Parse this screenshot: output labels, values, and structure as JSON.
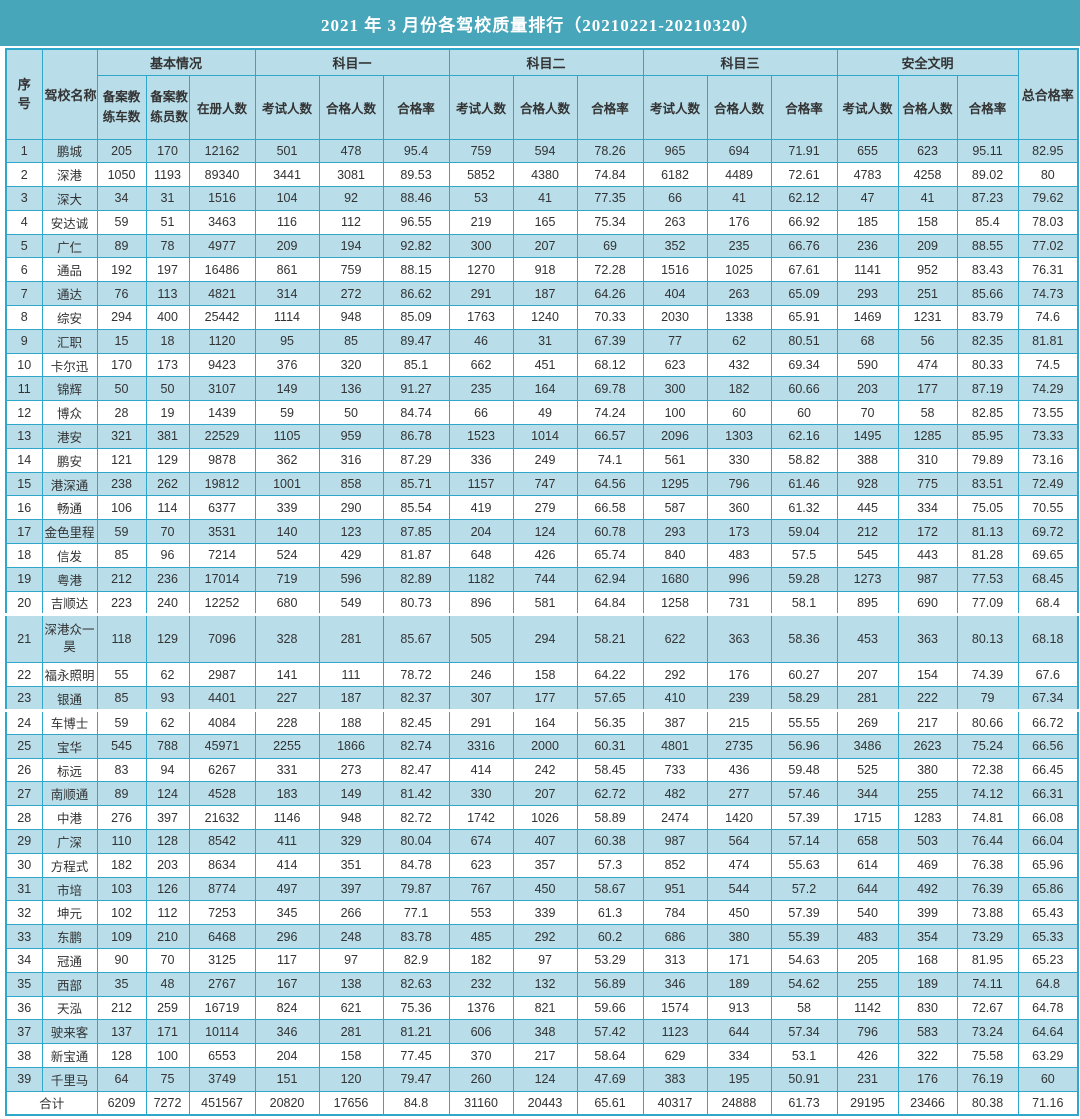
{
  "title": "2021 年 3 月份各驾校质量排行（20210221-20210320）",
  "colors": {
    "teal": "#48a6ba",
    "row-alt": "#b9dde9",
    "grid": "#2fa7cb",
    "text": "#333333",
    "title-text": "#ffffff"
  },
  "table": {
    "columns": {
      "seq": "序号",
      "school": "驾校名称",
      "groups": [
        {
          "label": "基本情况",
          "children": [
            "备案教练车数",
            "备案教练员数",
            "在册人数"
          ]
        },
        {
          "label": "科目一",
          "children": [
            "考试人数",
            "合格人数",
            "合格率"
          ]
        },
        {
          "label": "科目二",
          "children": [
            "考试人数",
            "合格人数",
            "合格率"
          ]
        },
        {
          "label": "科目三",
          "children": [
            "考试人数",
            "合格人数",
            "合格率"
          ]
        },
        {
          "label": "安全文明",
          "children": [
            "考试人数",
            "合格人数",
            "合格率"
          ]
        }
      ],
      "total": "总合格率"
    },
    "rows": [
      [
        "1",
        "鹏城",
        "205",
        "170",
        "12162",
        "501",
        "478",
        "95.4",
        "759",
        "594",
        "78.26",
        "965",
        "694",
        "71.91",
        "655",
        "623",
        "95.11",
        "82.95"
      ],
      [
        "2",
        "深港",
        "1050",
        "1193",
        "89340",
        "3441",
        "3081",
        "89.53",
        "5852",
        "4380",
        "74.84",
        "6182",
        "4489",
        "72.61",
        "4783",
        "4258",
        "89.02",
        "80"
      ],
      [
        "3",
        "深大",
        "34",
        "31",
        "1516",
        "104",
        "92",
        "88.46",
        "53",
        "41",
        "77.35",
        "66",
        "41",
        "62.12",
        "47",
        "41",
        "87.23",
        "79.62"
      ],
      [
        "4",
        "安达诚",
        "59",
        "51",
        "3463",
        "116",
        "112",
        "96.55",
        "219",
        "165",
        "75.34",
        "263",
        "176",
        "66.92",
        "185",
        "158",
        "85.4",
        "78.03"
      ],
      [
        "5",
        "广仁",
        "89",
        "78",
        "4977",
        "209",
        "194",
        "92.82",
        "300",
        "207",
        "69",
        "352",
        "235",
        "66.76",
        "236",
        "209",
        "88.55",
        "77.02"
      ],
      [
        "6",
        "通品",
        "192",
        "197",
        "16486",
        "861",
        "759",
        "88.15",
        "1270",
        "918",
        "72.28",
        "1516",
        "1025",
        "67.61",
        "1141",
        "952",
        "83.43",
        "76.31"
      ],
      [
        "7",
        "通达",
        "76",
        "113",
        "4821",
        "314",
        "272",
        "86.62",
        "291",
        "187",
        "64.26",
        "404",
        "263",
        "65.09",
        "293",
        "251",
        "85.66",
        "74.73"
      ],
      [
        "8",
        "综安",
        "294",
        "400",
        "25442",
        "1114",
        "948",
        "85.09",
        "1763",
        "1240",
        "70.33",
        "2030",
        "1338",
        "65.91",
        "1469",
        "1231",
        "83.79",
        "74.6"
      ],
      [
        "9",
        "汇职",
        "15",
        "18",
        "1120",
        "95",
        "85",
        "89.47",
        "46",
        "31",
        "67.39",
        "77",
        "62",
        "80.51",
        "68",
        "56",
        "82.35",
        "81.81"
      ],
      [
        "10",
        "卡尔迅",
        "170",
        "173",
        "9423",
        "376",
        "320",
        "85.1",
        "662",
        "451",
        "68.12",
        "623",
        "432",
        "69.34",
        "590",
        "474",
        "80.33",
        "74.5"
      ],
      [
        "11",
        "锦辉",
        "50",
        "50",
        "3107",
        "149",
        "136",
        "91.27",
        "235",
        "164",
        "69.78",
        "300",
        "182",
        "60.66",
        "203",
        "177",
        "87.19",
        "74.29"
      ],
      [
        "12",
        "博众",
        "28",
        "19",
        "1439",
        "59",
        "50",
        "84.74",
        "66",
        "49",
        "74.24",
        "100",
        "60",
        "60",
        "70",
        "58",
        "82.85",
        "73.55"
      ],
      [
        "13",
        "港安",
        "321",
        "381",
        "22529",
        "1105",
        "959",
        "86.78",
        "1523",
        "1014",
        "66.57",
        "2096",
        "1303",
        "62.16",
        "1495",
        "1285",
        "85.95",
        "73.33"
      ],
      [
        "14",
        "鹏安",
        "121",
        "129",
        "9878",
        "362",
        "316",
        "87.29",
        "336",
        "249",
        "74.1",
        "561",
        "330",
        "58.82",
        "388",
        "310",
        "79.89",
        "73.16"
      ],
      [
        "15",
        "港深通",
        "238",
        "262",
        "19812",
        "1001",
        "858",
        "85.71",
        "1157",
        "747",
        "64.56",
        "1295",
        "796",
        "61.46",
        "928",
        "775",
        "83.51",
        "72.49"
      ],
      [
        "16",
        "畅通",
        "106",
        "114",
        "6377",
        "339",
        "290",
        "85.54",
        "419",
        "279",
        "66.58",
        "587",
        "360",
        "61.32",
        "445",
        "334",
        "75.05",
        "70.55"
      ],
      [
        "17",
        "金色里程",
        "59",
        "70",
        "3531",
        "140",
        "123",
        "87.85",
        "204",
        "124",
        "60.78",
        "293",
        "173",
        "59.04",
        "212",
        "172",
        "81.13",
        "69.72"
      ],
      [
        "18",
        "信发",
        "85",
        "96",
        "7214",
        "524",
        "429",
        "81.87",
        "648",
        "426",
        "65.74",
        "840",
        "483",
        "57.5",
        "545",
        "443",
        "81.28",
        "69.65"
      ],
      [
        "19",
        "粤港",
        "212",
        "236",
        "17014",
        "719",
        "596",
        "82.89",
        "1182",
        "744",
        "62.94",
        "1680",
        "996",
        "59.28",
        "1273",
        "987",
        "77.53",
        "68.45"
      ],
      [
        "20",
        "吉顺达",
        "223",
        "240",
        "12252",
        "680",
        "549",
        "80.73",
        "896",
        "581",
        "64.84",
        "1258",
        "731",
        "58.1",
        "895",
        "690",
        "77.09",
        "68.4"
      ],
      [
        "21",
        "深港众一昊",
        "118",
        "129",
        "7096",
        "328",
        "281",
        "85.67",
        "505",
        "294",
        "58.21",
        "622",
        "363",
        "58.36",
        "453",
        "363",
        "80.13",
        "68.18"
      ],
      [
        "22",
        "福永照明",
        "55",
        "62",
        "2987",
        "141",
        "111",
        "78.72",
        "246",
        "158",
        "64.22",
        "292",
        "176",
        "60.27",
        "207",
        "154",
        "74.39",
        "67.6"
      ],
      [
        "23",
        "银通",
        "85",
        "93",
        "4401",
        "227",
        "187",
        "82.37",
        "307",
        "177",
        "57.65",
        "410",
        "239",
        "58.29",
        "281",
        "222",
        "79",
        "67.34"
      ],
      [
        "24",
        "车博士",
        "59",
        "62",
        "4084",
        "228",
        "188",
        "82.45",
        "291",
        "164",
        "56.35",
        "387",
        "215",
        "55.55",
        "269",
        "217",
        "80.66",
        "66.72"
      ],
      [
        "25",
        "宝华",
        "545",
        "788",
        "45971",
        "2255",
        "1866",
        "82.74",
        "3316",
        "2000",
        "60.31",
        "4801",
        "2735",
        "56.96",
        "3486",
        "2623",
        "75.24",
        "66.56"
      ],
      [
        "26",
        "标远",
        "83",
        "94",
        "6267",
        "331",
        "273",
        "82.47",
        "414",
        "242",
        "58.45",
        "733",
        "436",
        "59.48",
        "525",
        "380",
        "72.38",
        "66.45"
      ],
      [
        "27",
        "南顺通",
        "89",
        "124",
        "4528",
        "183",
        "149",
        "81.42",
        "330",
        "207",
        "62.72",
        "482",
        "277",
        "57.46",
        "344",
        "255",
        "74.12",
        "66.31"
      ],
      [
        "28",
        "中港",
        "276",
        "397",
        "21632",
        "1146",
        "948",
        "82.72",
        "1742",
        "1026",
        "58.89",
        "2474",
        "1420",
        "57.39",
        "1715",
        "1283",
        "74.81",
        "66.08"
      ],
      [
        "29",
        "广深",
        "110",
        "128",
        "8542",
        "411",
        "329",
        "80.04",
        "674",
        "407",
        "60.38",
        "987",
        "564",
        "57.14",
        "658",
        "503",
        "76.44",
        "66.04"
      ],
      [
        "30",
        "方程式",
        "182",
        "203",
        "8634",
        "414",
        "351",
        "84.78",
        "623",
        "357",
        "57.3",
        "852",
        "474",
        "55.63",
        "614",
        "469",
        "76.38",
        "65.96"
      ],
      [
        "31",
        "市培",
        "103",
        "126",
        "8774",
        "497",
        "397",
        "79.87",
        "767",
        "450",
        "58.67",
        "951",
        "544",
        "57.2",
        "644",
        "492",
        "76.39",
        "65.86"
      ],
      [
        "32",
        "坤元",
        "102",
        "112",
        "7253",
        "345",
        "266",
        "77.1",
        "553",
        "339",
        "61.3",
        "784",
        "450",
        "57.39",
        "540",
        "399",
        "73.88",
        "65.43"
      ],
      [
        "33",
        "东鹏",
        "109",
        "210",
        "6468",
        "296",
        "248",
        "83.78",
        "485",
        "292",
        "60.2",
        "686",
        "380",
        "55.39",
        "483",
        "354",
        "73.29",
        "65.33"
      ],
      [
        "34",
        "冠通",
        "90",
        "70",
        "3125",
        "117",
        "97",
        "82.9",
        "182",
        "97",
        "53.29",
        "313",
        "171",
        "54.63",
        "205",
        "168",
        "81.95",
        "65.23"
      ],
      [
        "35",
        "西部",
        "35",
        "48",
        "2767",
        "167",
        "138",
        "82.63",
        "232",
        "132",
        "56.89",
        "346",
        "189",
        "54.62",
        "255",
        "189",
        "74.11",
        "64.8"
      ],
      [
        "36",
        "天泓",
        "212",
        "259",
        "16719",
        "824",
        "621",
        "75.36",
        "1376",
        "821",
        "59.66",
        "1574",
        "913",
        "58",
        "1142",
        "830",
        "72.67",
        "64.78"
      ],
      [
        "37",
        "驶来客",
        "137",
        "171",
        "10114",
        "346",
        "281",
        "81.21",
        "606",
        "348",
        "57.42",
        "1123",
        "644",
        "57.34",
        "796",
        "583",
        "73.24",
        "64.64"
      ],
      [
        "38",
        "新宝通",
        "128",
        "100",
        "6553",
        "204",
        "158",
        "77.45",
        "370",
        "217",
        "58.64",
        "629",
        "334",
        "53.1",
        "426",
        "322",
        "75.58",
        "63.29"
      ],
      [
        "39",
        "千里马",
        "64",
        "75",
        "3749",
        "151",
        "120",
        "79.47",
        "260",
        "124",
        "47.69",
        "383",
        "195",
        "50.91",
        "231",
        "176",
        "76.19",
        "60"
      ]
    ],
    "tall_rows": [
      21
    ],
    "break_rows": [
      21,
      24
    ],
    "total_row": {
      "label": "合计",
      "cells": [
        "6209",
        "7272",
        "451567",
        "20820",
        "17656",
        "84.8",
        "31160",
        "20443",
        "65.61",
        "40317",
        "24888",
        "61.73",
        "29195",
        "23466",
        "80.38",
        "71.16"
      ]
    }
  }
}
